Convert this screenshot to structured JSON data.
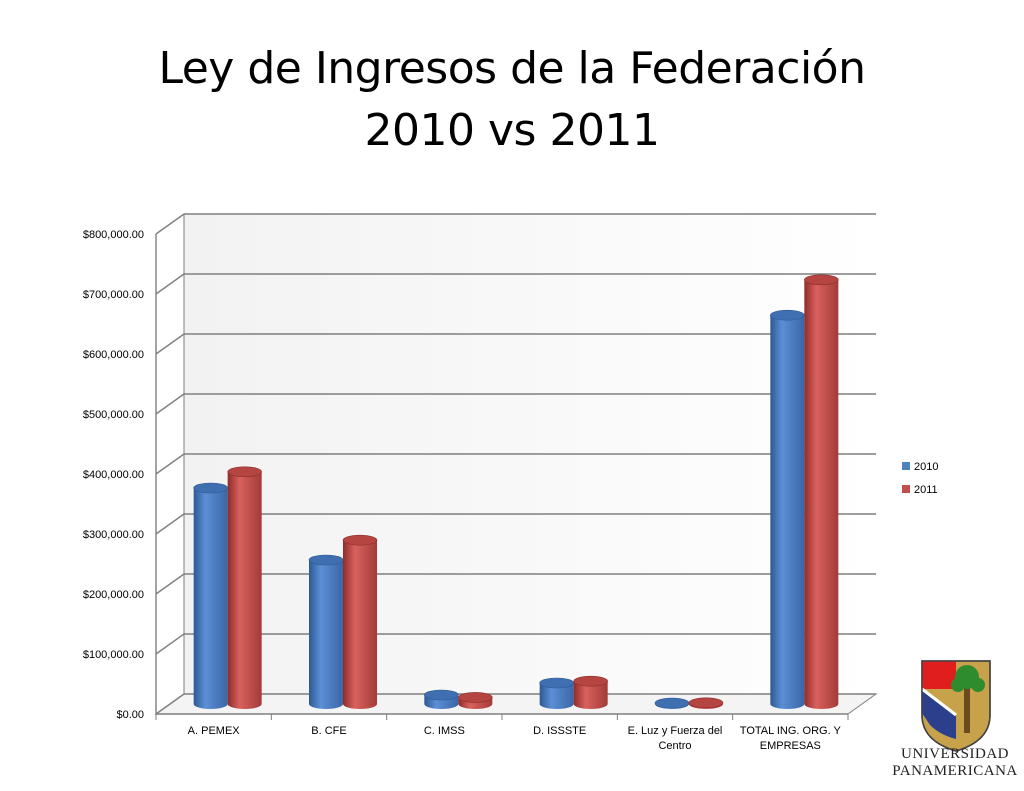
{
  "title": {
    "line1": "Ley de Ingresos de la Federación",
    "line2": "2010 vs 2011"
  },
  "chart_data": {
    "type": "bar",
    "categories": [
      [
        "A. PEMEX"
      ],
      [
        "B. CFE"
      ],
      [
        "C. IMSS"
      ],
      [
        "D. ISSSTE"
      ],
      [
        "E. Luz y Fuerza del",
        "Centro"
      ],
      [
        "TOTAL ING. ORG. Y",
        "EMPRESAS"
      ]
    ],
    "series": [
      {
        "name": "2010",
        "color": "#4F81BD",
        "values": [
          360000,
          240000,
          15000,
          35000,
          1500,
          648000
        ]
      },
      {
        "name": "2011",
        "color": "#C0504D",
        "values": [
          387000,
          273000,
          11000,
          38000,
          2000,
          707000
        ]
      }
    ],
    "y_ticks": [
      "$0.00",
      "$100,000.00",
      "$200,000.00",
      "$300,000.00",
      "$400,000.00",
      "$500,000.00",
      "$600,000.00",
      "$700,000.00",
      "$800,000.00"
    ],
    "ylim": [
      0,
      800000
    ],
    "grid": true,
    "legend": "right"
  },
  "logo": {
    "line1": "UNIVERSIDAD",
    "line2": "PANAMERICANA"
  }
}
